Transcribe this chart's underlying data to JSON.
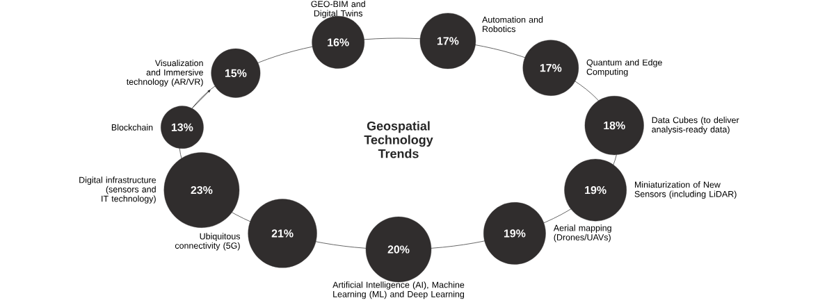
{
  "chart_data": {
    "type": "other",
    "title": "Geospatial Technology Trends",
    "categories": [
      "Blockchain",
      "Visualization and Immersive technology (AR/VR)",
      "GEO-BIM and Digital Twins",
      "Automation and Robotics",
      "Quantum and Edge Computing",
      "Data Cubes (to deliver analysis-ready data)",
      "Miniaturization of New Sensors (including LiDAR)",
      "Aerial mapping (Drones/UAVs)",
      "Artificial Intelligence (AI), Machine Learning (ML) and Deep Learning",
      "Ubiquitous connectivity (5G)",
      "Digital infrastructure (sensors and IT technology)"
    ],
    "values": [
      13,
      15,
      16,
      17,
      17,
      18,
      19,
      19,
      20,
      21,
      23
    ],
    "value_labels": [
      "13%",
      "15%",
      "16%",
      "17%",
      "17%",
      "18%",
      "19%",
      "19%",
      "20%",
      "21%",
      "23%"
    ],
    "color": "#302d2d"
  }
}
